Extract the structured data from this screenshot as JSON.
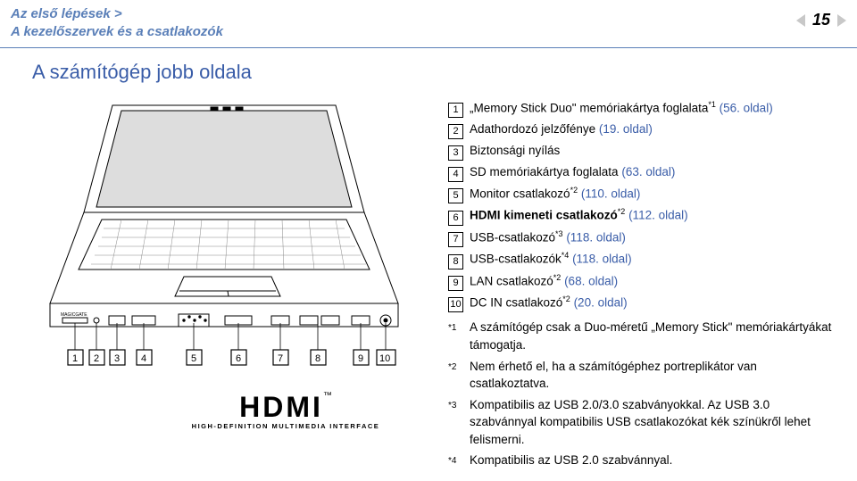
{
  "header": {
    "breadcrumb1": "Az első lépések >",
    "breadcrumb2": "A kezelőszervek és a csatlakozók",
    "page_num": "15"
  },
  "title": "A számítógép jobb oldala",
  "items": [
    {
      "n": "1",
      "text": "„Memory Stick Duo\" memóriakártya foglalata",
      "sup": "*1",
      "page": " (56. oldal)"
    },
    {
      "n": "2",
      "text": "Adathordozó jelzőfénye ",
      "page": "(19. oldal)"
    },
    {
      "n": "3",
      "text": "Biztonsági nyílás"
    },
    {
      "n": "4",
      "text": "SD memóriakártya foglalata ",
      "page": "(63. oldal)"
    },
    {
      "n": "5",
      "text": "Monitor csatlakozó",
      "sup": "*2",
      "page": " (110. oldal)"
    },
    {
      "n": "6",
      "text": "HDMI kimeneti csatlakozó",
      "bold": true,
      "sup": "*2",
      "page": " (112. oldal)"
    },
    {
      "n": "7",
      "text": "USB-csatlakozó",
      "sup": "*3",
      "page": " (118. oldal)"
    },
    {
      "n": "8",
      "text": "USB-csatlakozók",
      "sup": "*4",
      "page": " (118. oldal)"
    },
    {
      "n": "9",
      "text": "LAN csatlakozó",
      "sup": "*2",
      "page": " (68. oldal)"
    },
    {
      "n": "10",
      "text": "DC IN csatlakozó",
      "sup": "*2",
      "page": " (20. oldal)"
    }
  ],
  "footnotes": [
    {
      "k": "*1",
      "t": "A számítógép csak a Duo-méretű „Memory Stick\" memóriakártyákat támogatja."
    },
    {
      "k": "*2",
      "t": "Nem érhető el, ha a számítógéphez portreplikátor van csatlakoztatva."
    },
    {
      "k": "*3",
      "t": "Kompatibilis az USB 2.0/3.0 szabványokkal. Az USB 3.0 szabvánnyal kompatibilis USB csatlakozókat kék színükről lehet felismerni."
    },
    {
      "k": "*4",
      "t": "Kompatibilis az USB 2.0 szabvánnyal."
    }
  ],
  "callout_numbers": [
    "1",
    "2",
    "3",
    "4",
    "5",
    "6",
    "7",
    "8",
    "9",
    "10"
  ],
  "hdmi": {
    "logo": "HDMI",
    "tm": "™",
    "sub": "HIGH-DEFINITION MULTIMEDIA INTERFACE"
  },
  "illustration": {
    "stroke": "#000000",
    "fill": "#ffffff",
    "shade": "#dddddd"
  }
}
